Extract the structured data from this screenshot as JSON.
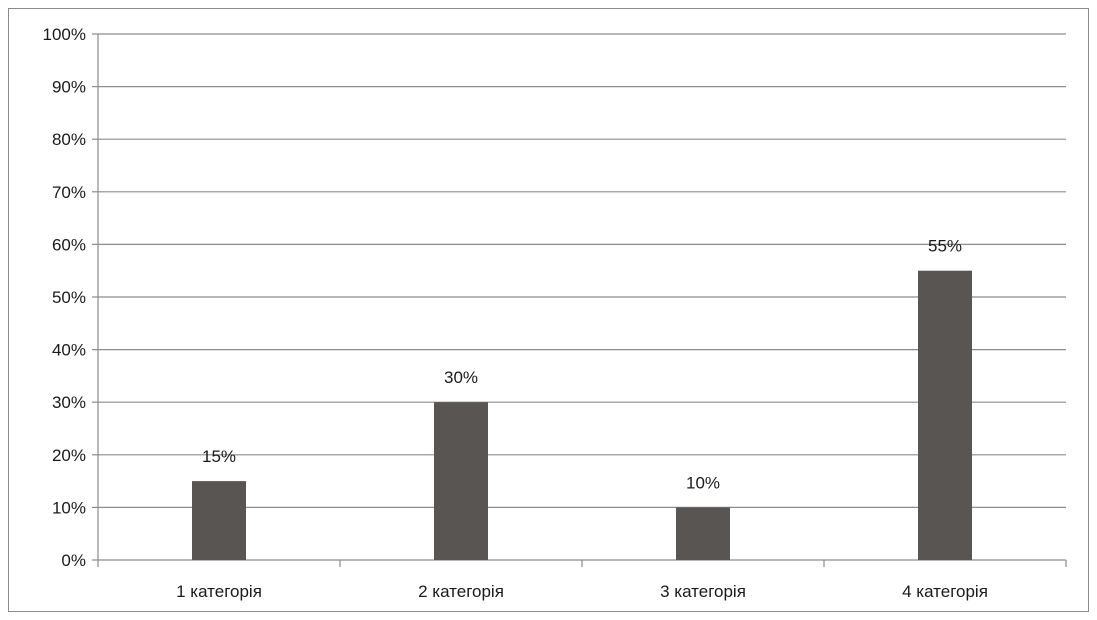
{
  "chart_data": {
    "type": "bar",
    "categories": [
      "1 категорія",
      "2 категорія",
      "3 категорія",
      "4 категорія"
    ],
    "values": [
      15,
      30,
      10,
      55
    ],
    "data_labels": [
      "15%",
      "30%",
      "10%",
      "55%"
    ],
    "y_ticks": [
      "0%",
      "10%",
      "20%",
      "30%",
      "40%",
      "50%",
      "60%",
      "70%",
      "80%",
      "90%",
      "100%"
    ],
    "title": "",
    "xlabel": "",
    "ylabel": "",
    "ylim": [
      0,
      100
    ],
    "grid": true,
    "legend": "none",
    "bar_color": "#595552",
    "grid_color": "#8c8c8c"
  }
}
